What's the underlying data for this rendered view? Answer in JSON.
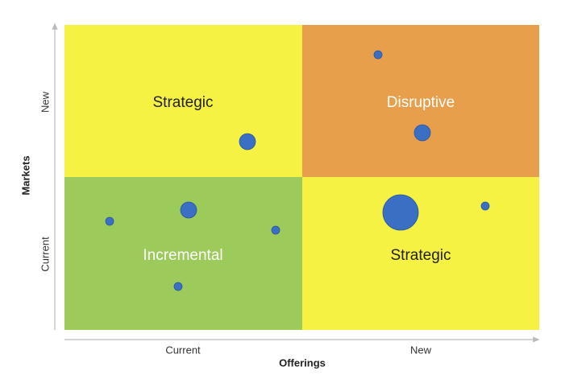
{
  "quadrants": {
    "top_left": "Strategic",
    "top_right": "Disruptive",
    "bottom_left": "Incremental",
    "bottom_right": "Strategic"
  },
  "y_axis": {
    "title": "Markets",
    "labels": [
      "Current",
      "New"
    ]
  },
  "x_axis": {
    "title": "Offerings",
    "labels": [
      "Current",
      "New"
    ]
  }
}
